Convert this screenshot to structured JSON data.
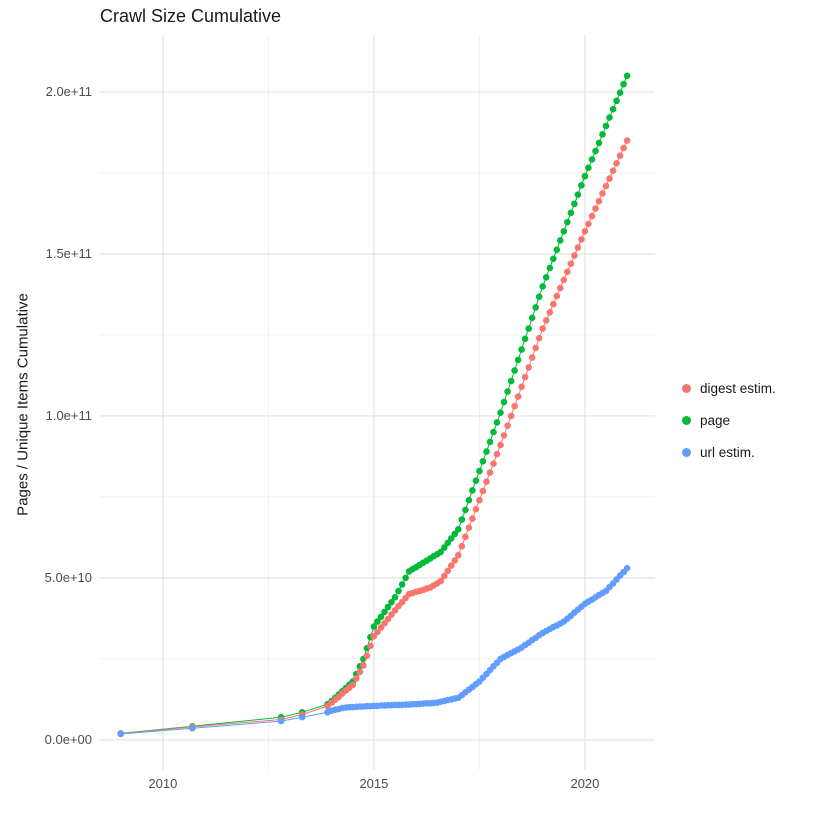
{
  "chart_data": {
    "type": "scatter",
    "style": "points connected by thin lines (ggplot-like)",
    "title": "Crawl Size Cumulative",
    "xlabel": "",
    "ylabel": "Pages / Unique Items Cumulative",
    "x_unit": "year",
    "y_unit": "count; values stored in units of 1e9 (billions)",
    "xlim": [
      2008.51,
      2021.66
    ],
    "ylim_e9": [
      -9.3,
      217.6
    ],
    "grid": "on",
    "background": "#ffffff",
    "grid_major_color": "#e3e3e3",
    "grid_minor_color": "#f1f1f1",
    "legend_position": "right",
    "x_ticks": [
      {
        "value": 2010,
        "label": "2010"
      },
      {
        "value": 2015,
        "label": "2015"
      },
      {
        "value": 2020,
        "label": "2020"
      }
    ],
    "y_ticks": [
      {
        "value_e9": 0,
        "label": "0.0e+00"
      },
      {
        "value_e9": 50,
        "label": "5.0e+10"
      },
      {
        "value_e9": 100,
        "label": "1.0e+11"
      },
      {
        "value_e9": 150,
        "label": "1.5e+11"
      },
      {
        "value_e9": 200,
        "label": "2.0e+11"
      }
    ],
    "x_minor": [
      2012.5,
      2017.5
    ],
    "y_minor_e9": [
      25,
      75,
      125,
      175
    ],
    "series": [
      {
        "name": "digest estim.",
        "color": "#F8766D",
        "points": [
          [
            2009.0,
            1.9
          ],
          [
            2010.7,
            4.0
          ],
          [
            2012.8,
            6.3
          ],
          [
            2013.3,
            7.8
          ],
          [
            2013.9,
            10.5
          ],
          [
            2014.0,
            11.5
          ],
          [
            2014.083,
            12.4
          ],
          [
            2014.167,
            13.3
          ],
          [
            2014.25,
            14.3
          ],
          [
            2014.333,
            15.2
          ],
          [
            2014.417,
            16.1
          ],
          [
            2014.5,
            17.0
          ],
          [
            2014.583,
            19.0
          ],
          [
            2014.667,
            21.0
          ],
          [
            2014.75,
            23.0
          ],
          [
            2014.833,
            26.0
          ],
          [
            2014.917,
            29.0
          ],
          [
            2015.0,
            32.0
          ],
          [
            2015.083,
            33.3
          ],
          [
            2015.167,
            34.7
          ],
          [
            2015.25,
            36.0
          ],
          [
            2015.333,
            37.3
          ],
          [
            2015.417,
            38.7
          ],
          [
            2015.5,
            40.0
          ],
          [
            2015.583,
            41.3
          ],
          [
            2015.667,
            42.5
          ],
          [
            2015.75,
            43.8
          ],
          [
            2015.833,
            45.0
          ],
          [
            2015.917,
            45.3
          ],
          [
            2016.0,
            45.7
          ],
          [
            2016.083,
            46.0
          ],
          [
            2016.167,
            46.3
          ],
          [
            2016.25,
            46.7
          ],
          [
            2016.333,
            47.0
          ],
          [
            2016.417,
            47.7
          ],
          [
            2016.5,
            48.3
          ],
          [
            2016.583,
            49.0
          ],
          [
            2016.667,
            50.6
          ],
          [
            2016.75,
            52.2
          ],
          [
            2016.833,
            53.8
          ],
          [
            2016.917,
            55.4
          ],
          [
            2017.0,
            57.0
          ],
          [
            2017.083,
            59.8
          ],
          [
            2017.167,
            62.7
          ],
          [
            2017.25,
            65.5
          ],
          [
            2017.333,
            68.3
          ],
          [
            2017.417,
            71.2
          ],
          [
            2017.5,
            74.0
          ],
          [
            2017.583,
            76.8
          ],
          [
            2017.667,
            79.7
          ],
          [
            2017.75,
            82.5
          ],
          [
            2017.833,
            85.3
          ],
          [
            2017.917,
            88.2
          ],
          [
            2018.0,
            91.0
          ],
          [
            2018.083,
            94.0
          ],
          [
            2018.167,
            97.0
          ],
          [
            2018.25,
            100.0
          ],
          [
            2018.333,
            103.0
          ],
          [
            2018.417,
            106.0
          ],
          [
            2018.5,
            109.0
          ],
          [
            2018.583,
            112.0
          ],
          [
            2018.667,
            115.0
          ],
          [
            2018.75,
            118.0
          ],
          [
            2018.833,
            121.0
          ],
          [
            2018.917,
            124.0
          ],
          [
            2019.0,
            127.0
          ],
          [
            2019.083,
            129.5
          ],
          [
            2019.167,
            132.0
          ],
          [
            2019.25,
            134.5
          ],
          [
            2019.333,
            137.0
          ],
          [
            2019.417,
            139.5
          ],
          [
            2019.5,
            142.0
          ],
          [
            2019.583,
            144.5
          ],
          [
            2019.667,
            147.0
          ],
          [
            2019.75,
            149.5
          ],
          [
            2019.833,
            152.0
          ],
          [
            2019.917,
            154.5
          ],
          [
            2020.0,
            157.0
          ],
          [
            2020.083,
            159.3
          ],
          [
            2020.167,
            161.7
          ],
          [
            2020.25,
            164.0
          ],
          [
            2020.333,
            166.3
          ],
          [
            2020.417,
            168.7
          ],
          [
            2020.5,
            171.0
          ],
          [
            2020.583,
            173.3
          ],
          [
            2020.667,
            175.7
          ],
          [
            2020.75,
            178.0
          ],
          [
            2020.833,
            180.3
          ],
          [
            2020.917,
            182.7
          ],
          [
            2021.0,
            185.0
          ]
        ]
      },
      {
        "name": "page",
        "color": "#00BA38",
        "points": [
          [
            2009.0,
            2.0
          ],
          [
            2010.7,
            4.2
          ],
          [
            2012.8,
            7.0
          ],
          [
            2013.3,
            8.5
          ],
          [
            2013.9,
            11.0
          ],
          [
            2014.0,
            12.0
          ],
          [
            2014.083,
            13.0
          ],
          [
            2014.167,
            14.0
          ],
          [
            2014.25,
            15.0
          ],
          [
            2014.333,
            16.0
          ],
          [
            2014.417,
            17.0
          ],
          [
            2014.5,
            18.0
          ],
          [
            2014.583,
            20.3
          ],
          [
            2014.667,
            22.7
          ],
          [
            2014.75,
            25.0
          ],
          [
            2014.833,
            28.3
          ],
          [
            2014.917,
            31.7
          ],
          [
            2015.0,
            35.0
          ],
          [
            2015.083,
            36.5
          ],
          [
            2015.167,
            38.0
          ],
          [
            2015.25,
            39.5
          ],
          [
            2015.333,
            41.0
          ],
          [
            2015.417,
            42.5
          ],
          [
            2015.5,
            44.0
          ],
          [
            2015.583,
            46.0
          ],
          [
            2015.667,
            48.0
          ],
          [
            2015.75,
            50.0
          ],
          [
            2015.833,
            52.0
          ],
          [
            2015.917,
            52.7
          ],
          [
            2016.0,
            53.3
          ],
          [
            2016.083,
            54.0
          ],
          [
            2016.167,
            54.7
          ],
          [
            2016.25,
            55.3
          ],
          [
            2016.333,
            56.0
          ],
          [
            2016.417,
            56.7
          ],
          [
            2016.5,
            57.3
          ],
          [
            2016.583,
            58.0
          ],
          [
            2016.667,
            59.4
          ],
          [
            2016.75,
            60.8
          ],
          [
            2016.833,
            62.2
          ],
          [
            2016.917,
            63.6
          ],
          [
            2017.0,
            65.0
          ],
          [
            2017.083,
            68.0
          ],
          [
            2017.167,
            71.0
          ],
          [
            2017.25,
            74.0
          ],
          [
            2017.333,
            77.0
          ],
          [
            2017.417,
            80.0
          ],
          [
            2017.5,
            83.0
          ],
          [
            2017.583,
            86.0
          ],
          [
            2017.667,
            89.0
          ],
          [
            2017.75,
            92.0
          ],
          [
            2017.833,
            95.0
          ],
          [
            2017.917,
            98.0
          ],
          [
            2018.0,
            101.0
          ],
          [
            2018.083,
            104.3
          ],
          [
            2018.167,
            107.5
          ],
          [
            2018.25,
            110.8
          ],
          [
            2018.333,
            114.0
          ],
          [
            2018.417,
            117.3
          ],
          [
            2018.5,
            120.5
          ],
          [
            2018.583,
            123.8
          ],
          [
            2018.667,
            127.0
          ],
          [
            2018.75,
            130.3
          ],
          [
            2018.833,
            133.5
          ],
          [
            2018.917,
            136.8
          ],
          [
            2019.0,
            140.0
          ],
          [
            2019.083,
            142.8
          ],
          [
            2019.167,
            145.7
          ],
          [
            2019.25,
            148.5
          ],
          [
            2019.333,
            151.3
          ],
          [
            2019.417,
            154.2
          ],
          [
            2019.5,
            157.0
          ],
          [
            2019.583,
            159.8
          ],
          [
            2019.667,
            162.7
          ],
          [
            2019.75,
            165.5
          ],
          [
            2019.833,
            168.3
          ],
          [
            2019.917,
            171.2
          ],
          [
            2020.0,
            174.0
          ],
          [
            2020.083,
            176.6
          ],
          [
            2020.167,
            179.2
          ],
          [
            2020.25,
            181.8
          ],
          [
            2020.333,
            184.3
          ],
          [
            2020.417,
            186.9
          ],
          [
            2020.5,
            189.5
          ],
          [
            2020.583,
            192.1
          ],
          [
            2020.667,
            194.7
          ],
          [
            2020.75,
            197.3
          ],
          [
            2020.833,
            199.8
          ],
          [
            2020.917,
            202.4
          ],
          [
            2021.0,
            205.0
          ]
        ]
      },
      {
        "name": "url estim.",
        "color": "#619CFF",
        "points": [
          [
            2009.0,
            1.8
          ],
          [
            2010.7,
            3.6
          ],
          [
            2012.8,
            5.8
          ],
          [
            2013.3,
            7.0
          ],
          [
            2013.9,
            8.5
          ],
          [
            2014.0,
            9.0
          ],
          [
            2014.083,
            9.3
          ],
          [
            2014.167,
            9.5
          ],
          [
            2014.25,
            9.8
          ],
          [
            2014.333,
            10.0
          ],
          [
            2014.417,
            10.1
          ],
          [
            2014.5,
            10.1
          ],
          [
            2014.583,
            10.2
          ],
          [
            2014.667,
            10.3
          ],
          [
            2014.75,
            10.3
          ],
          [
            2014.833,
            10.4
          ],
          [
            2014.917,
            10.4
          ],
          [
            2015.0,
            10.5
          ],
          [
            2015.083,
            10.5
          ],
          [
            2015.167,
            10.6
          ],
          [
            2015.25,
            10.6
          ],
          [
            2015.333,
            10.7
          ],
          [
            2015.417,
            10.7
          ],
          [
            2015.5,
            10.8
          ],
          [
            2015.583,
            10.8
          ],
          [
            2015.667,
            10.8
          ],
          [
            2015.75,
            10.9
          ],
          [
            2015.833,
            10.9
          ],
          [
            2015.917,
            11.0
          ],
          [
            2016.0,
            11.0
          ],
          [
            2016.083,
            11.1
          ],
          [
            2016.167,
            11.2
          ],
          [
            2016.25,
            11.3
          ],
          [
            2016.333,
            11.3
          ],
          [
            2016.417,
            11.4
          ],
          [
            2016.5,
            11.5
          ],
          [
            2016.583,
            11.8
          ],
          [
            2016.667,
            12.0
          ],
          [
            2016.75,
            12.3
          ],
          [
            2016.833,
            12.5
          ],
          [
            2016.917,
            12.8
          ],
          [
            2017.0,
            13.0
          ],
          [
            2017.083,
            13.8
          ],
          [
            2017.167,
            14.7
          ],
          [
            2017.25,
            15.5
          ],
          [
            2017.333,
            16.3
          ],
          [
            2017.417,
            17.2
          ],
          [
            2017.5,
            18.0
          ],
          [
            2017.583,
            19.2
          ],
          [
            2017.667,
            20.3
          ],
          [
            2017.75,
            21.5
          ],
          [
            2017.833,
            22.7
          ],
          [
            2017.917,
            23.8
          ],
          [
            2018.0,
            25.0
          ],
          [
            2018.083,
            25.6
          ],
          [
            2018.167,
            26.2
          ],
          [
            2018.25,
            26.8
          ],
          [
            2018.333,
            27.3
          ],
          [
            2018.417,
            27.9
          ],
          [
            2018.5,
            28.5
          ],
          [
            2018.583,
            29.3
          ],
          [
            2018.667,
            30.0
          ],
          [
            2018.75,
            30.8
          ],
          [
            2018.833,
            31.5
          ],
          [
            2018.917,
            32.3
          ],
          [
            2019.0,
            33.0
          ],
          [
            2019.083,
            33.6
          ],
          [
            2019.167,
            34.2
          ],
          [
            2019.25,
            34.8
          ],
          [
            2019.333,
            35.3
          ],
          [
            2019.417,
            35.9
          ],
          [
            2019.5,
            36.5
          ],
          [
            2019.583,
            37.4
          ],
          [
            2019.667,
            38.3
          ],
          [
            2019.75,
            39.3
          ],
          [
            2019.833,
            40.2
          ],
          [
            2019.917,
            41.1
          ],
          [
            2020.0,
            42.0
          ],
          [
            2020.083,
            42.7
          ],
          [
            2020.167,
            43.3
          ],
          [
            2020.25,
            44.0
          ],
          [
            2020.333,
            44.7
          ],
          [
            2020.417,
            45.3
          ],
          [
            2020.5,
            46.0
          ],
          [
            2020.583,
            47.2
          ],
          [
            2020.667,
            48.3
          ],
          [
            2020.75,
            49.5
          ],
          [
            2020.833,
            50.7
          ],
          [
            2020.917,
            51.8
          ],
          [
            2021.0,
            53.0
          ]
        ]
      }
    ]
  }
}
